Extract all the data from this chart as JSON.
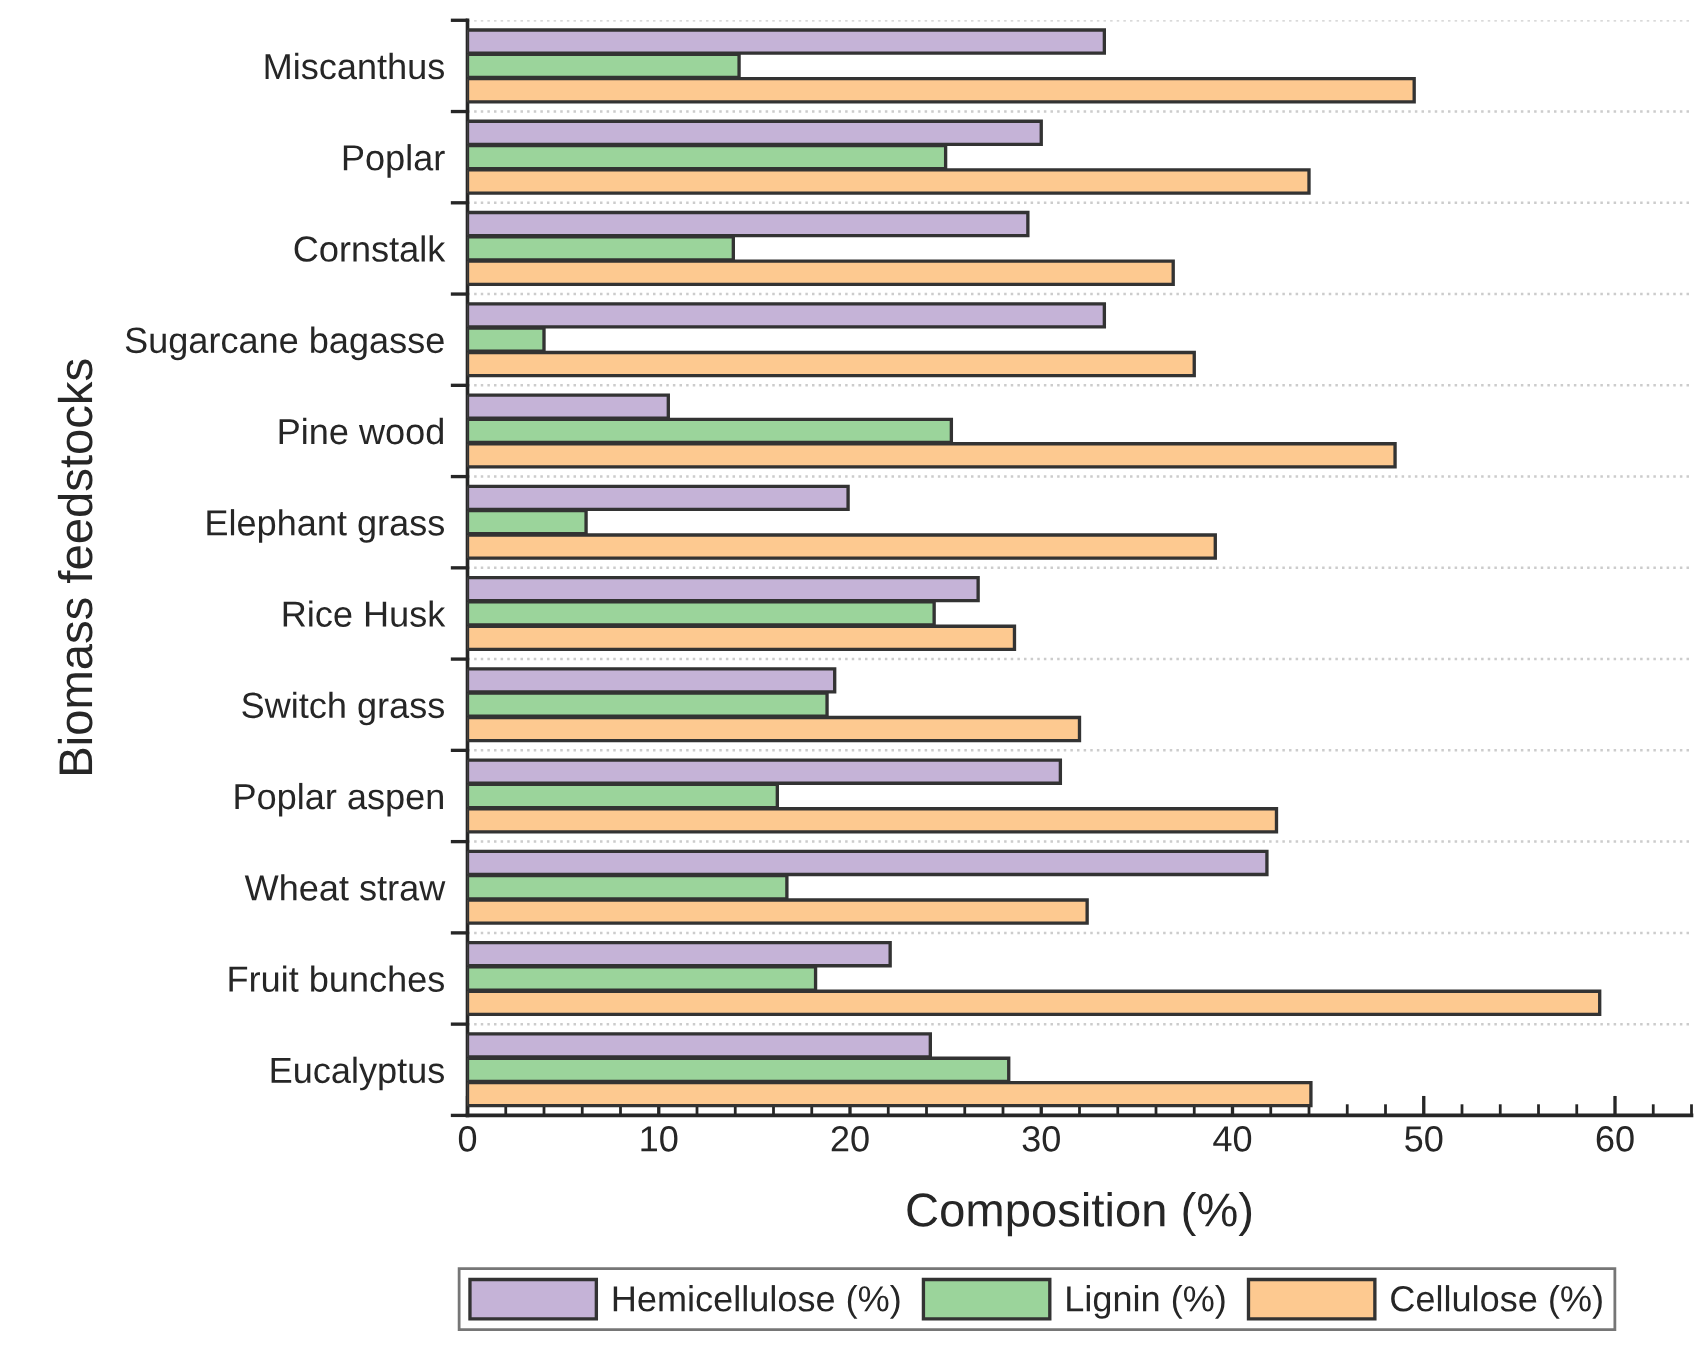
{
  "chart_data": {
    "type": "bar",
    "orientation": "horizontal",
    "xlabel": "Composition (%)",
    "ylabel": "Biomass feedstocks",
    "categories": [
      "Miscanthus",
      "Poplar",
      "Cornstalk",
      "Sugarcane bagasse",
      "Pine wood",
      "Elephant grass",
      "Rice Husk",
      "Switch grass",
      "Poplar aspen",
      "Wheat straw",
      "Fruit bunches",
      "Eucalyptus"
    ],
    "series": [
      {
        "name": "Hemicellulose (%)",
        "color": "#c5b3d7",
        "values": [
          33.3,
          30.0,
          29.3,
          33.3,
          10.5,
          19.9,
          26.7,
          19.2,
          31.0,
          41.8,
          22.1,
          24.2
        ]
      },
      {
        "name": "Lignin (%)",
        "color": "#9bd49b",
        "values": [
          14.2,
          25.0,
          13.9,
          4.0,
          25.3,
          6.2,
          24.4,
          18.8,
          16.2,
          16.7,
          18.2,
          28.3
        ]
      },
      {
        "name": "Cellulose (%)",
        "color": "#fdc990",
        "values": [
          49.5,
          44.0,
          36.9,
          38.0,
          48.5,
          39.1,
          28.6,
          32.0,
          42.3,
          32.4,
          59.2,
          44.1
        ]
      }
    ],
    "xlim": [
      0,
      64
    ],
    "xticks": [
      0,
      10,
      20,
      30,
      40,
      50,
      60
    ],
    "grid": "y",
    "legend": "bottom"
  }
}
